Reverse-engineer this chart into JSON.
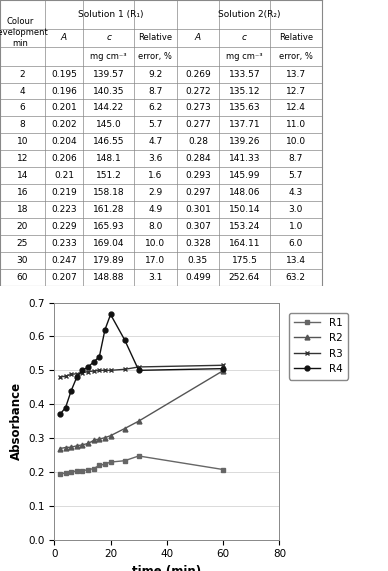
{
  "title": "",
  "xlabel": "time (min)",
  "ylabel": "Absorbance",
  "xlim": [
    0,
    80
  ],
  "ylim": [
    0,
    0.7
  ],
  "yticks": [
    0,
    0.1,
    0.2,
    0.3,
    0.4,
    0.5,
    0.6,
    0.7
  ],
  "xticks": [
    0,
    20,
    40,
    60,
    80
  ],
  "series": {
    "R1": {
      "time": [
        2,
        4,
        6,
        8,
        10,
        12,
        14,
        16,
        18,
        20,
        25,
        30,
        60
      ],
      "absorbance": [
        0.195,
        0.196,
        0.201,
        0.202,
        0.204,
        0.206,
        0.21,
        0.219,
        0.223,
        0.229,
        0.233,
        0.247,
        0.207
      ],
      "marker": "s",
      "color": "#666666",
      "linestyle": "-"
    },
    "R2": {
      "time": [
        2,
        4,
        6,
        8,
        10,
        12,
        14,
        16,
        18,
        20,
        25,
        30,
        60
      ],
      "absorbance": [
        0.269,
        0.272,
        0.273,
        0.277,
        0.28,
        0.284,
        0.293,
        0.297,
        0.301,
        0.307,
        0.328,
        0.35,
        0.499
      ],
      "marker": "^",
      "color": "#555555",
      "linestyle": "-"
    },
    "R3": {
      "time": [
        2,
        4,
        6,
        8,
        10,
        12,
        14,
        16,
        18,
        20,
        25,
        30,
        60
      ],
      "absorbance": [
        0.48,
        0.483,
        0.488,
        0.49,
        0.493,
        0.496,
        0.498,
        0.5,
        0.5,
        0.5,
        0.503,
        0.51,
        0.515
      ],
      "marker": "x",
      "color": "#333333",
      "linestyle": "-"
    },
    "R4": {
      "time": [
        2,
        4,
        6,
        8,
        10,
        12,
        14,
        16,
        18,
        20,
        25,
        30,
        60
      ],
      "absorbance": [
        0.37,
        0.39,
        0.44,
        0.48,
        0.5,
        0.51,
        0.525,
        0.54,
        0.62,
        0.665,
        0.59,
        0.5,
        0.505
      ],
      "marker": "o",
      "color": "#111111",
      "linestyle": "-"
    }
  },
  "legend_order": [
    "R1",
    "R2",
    "R3",
    "R4"
  ],
  "table_rows": [
    [
      2,
      0.195,
      139.57,
      9.2,
      0.269,
      133.57,
      13.7
    ],
    [
      4,
      0.196,
      140.35,
      8.7,
      0.272,
      135.12,
      12.7
    ],
    [
      6,
      0.201,
      144.22,
      6.2,
      0.273,
      135.63,
      12.4
    ],
    [
      8,
      0.202,
      145.0,
      5.7,
      0.277,
      137.71,
      11.0
    ],
    [
      10,
      0.204,
      146.55,
      4.7,
      0.28,
      139.26,
      10.0
    ],
    [
      12,
      0.206,
      148.1,
      3.6,
      0.284,
      141.33,
      8.7
    ],
    [
      14,
      0.21,
      151.2,
      1.6,
      0.293,
      145.99,
      5.7
    ],
    [
      16,
      0.219,
      158.18,
      2.9,
      0.297,
      148.06,
      4.3
    ],
    [
      18,
      0.223,
      161.28,
      4.9,
      0.301,
      150.14,
      3.0
    ],
    [
      20,
      0.229,
      165.93,
      8.0,
      0.307,
      153.24,
      1.0
    ],
    [
      25,
      0.233,
      169.04,
      10.0,
      0.328,
      164.11,
      6.0
    ],
    [
      30,
      0.247,
      179.89,
      17.0,
      0.35,
      175.5,
      13.4
    ],
    [
      60,
      0.207,
      148.88,
      3.1,
      0.499,
      252.64,
      63.2
    ]
  ],
  "background_color": "#ffffff",
  "grid_color": "#cccccc"
}
